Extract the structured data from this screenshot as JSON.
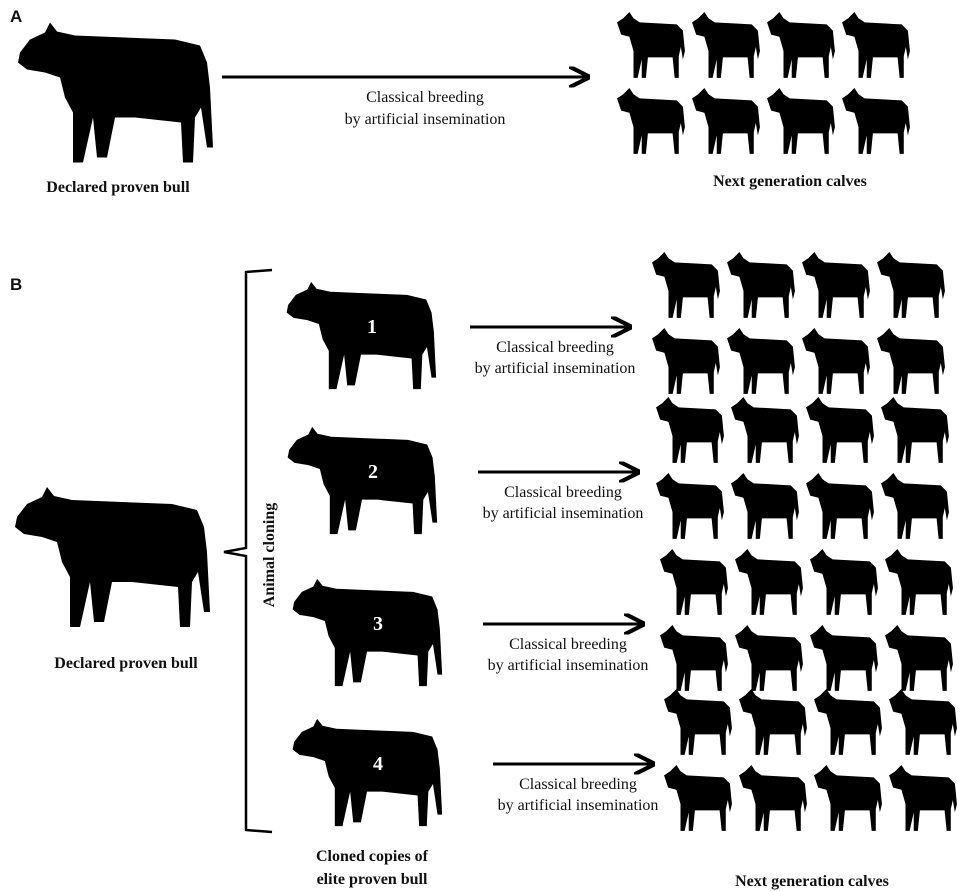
{
  "panel_a": {
    "label": "A",
    "bull_label": "Declared proven bull",
    "arrow_label": [
      "Classical breeding",
      "by artificial insemination"
    ],
    "calves_label": "Next generation calves"
  },
  "panel_b": {
    "label": "B",
    "bull_label": "Declared proven bull",
    "bracket_label": "Animal cloning",
    "clones": [
      {
        "number": "1",
        "arrow_label": [
          "Classical breeding",
          "by artificial insemination"
        ]
      },
      {
        "number": "2",
        "arrow_label": [
          "Classical breeding",
          "by artificial insemination"
        ]
      },
      {
        "number": "3",
        "arrow_label": [
          "Classical breeding",
          "by artificial insemination"
        ]
      },
      {
        "number": "4",
        "arrow_label": [
          "Classical breeding",
          "by artificial insemination"
        ]
      }
    ],
    "clones_label": [
      "Cloned copies of",
      "elite proven bull"
    ],
    "calves_label": "Next generation calves"
  }
}
